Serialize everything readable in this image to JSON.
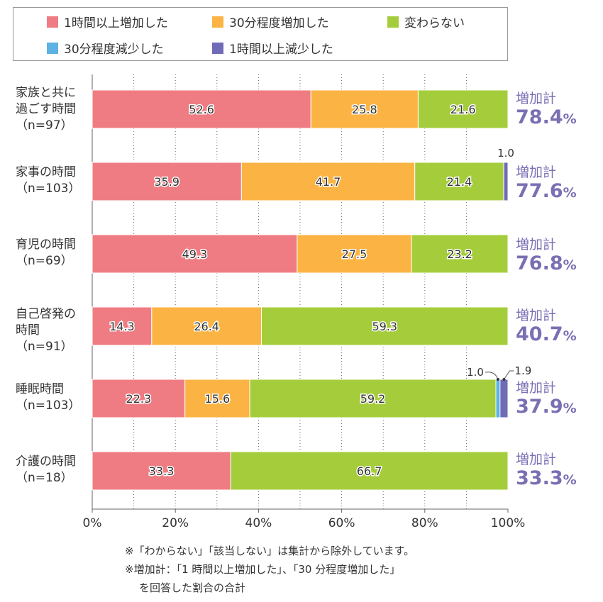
{
  "legend": [
    {
      "label": "1時間以上増加した",
      "color": "#f07c83"
    },
    {
      "label": "30分程度増加した",
      "color": "#fbb443"
    },
    {
      "label": "変わらない",
      "color": "#a5cd3b"
    },
    {
      "label": "30分程度減少した",
      "color": "#5cb2e2"
    },
    {
      "label": "1時間以上減少した",
      "color": "#6f6bb6"
    }
  ],
  "chart_data": {
    "type": "bar",
    "orientation": "horizontal",
    "stacked": true,
    "categories": [
      "家族と共に\n過ごす時間\n（n=97）",
      "家事の時間\n（n=103）",
      "育児の時間\n（n=69）",
      "自己啓発の\n時間\n（n=91）",
      "睡眠時間\n（n=103）",
      "介護の時間\n（n=18）"
    ],
    "series": [
      {
        "name": "1時間以上増加した",
        "color": "#f07c83",
        "values": [
          52.6,
          35.9,
          49.3,
          14.3,
          22.3,
          33.3
        ]
      },
      {
        "name": "30分程度増加した",
        "color": "#fbb443",
        "values": [
          25.8,
          41.7,
          27.5,
          26.4,
          15.6,
          0
        ]
      },
      {
        "name": "変わらない",
        "color": "#a5cd3b",
        "values": [
          21.6,
          21.4,
          23.2,
          59.3,
          59.2,
          66.7
        ]
      },
      {
        "name": "30分程度減少した",
        "color": "#5cb2e2",
        "values": [
          0,
          0,
          0,
          0,
          1.0,
          0
        ]
      },
      {
        "name": "1時間以上減少した",
        "color": "#6f6bb6",
        "values": [
          0,
          1.0,
          0,
          0,
          1.9,
          0
        ]
      }
    ],
    "inside_labels": [
      [
        "52.6",
        "25.8",
        "21.6",
        null,
        null
      ],
      [
        "35.9",
        "41.7",
        "21.4",
        null,
        null
      ],
      [
        "49.3",
        "27.5",
        "23.2",
        null,
        null
      ],
      [
        "14.3",
        "26.4",
        "59.3",
        null,
        null
      ],
      [
        "22.3",
        "15.6",
        "59.2",
        null,
        null
      ],
      [
        "33.3",
        null,
        "66.7",
        null,
        null
      ]
    ],
    "outside_labels": [
      {
        "row": 1,
        "series": 4,
        "text": "1.0",
        "style": "above"
      },
      {
        "row": 4,
        "series": 3,
        "text": "1.0",
        "style": "callout-left"
      },
      {
        "row": 4,
        "series": 4,
        "text": "1.9",
        "style": "callout-right"
      }
    ],
    "x_ticks": [
      "0%",
      "20%",
      "40%",
      "60%",
      "80%",
      "100%"
    ],
    "xlim": [
      0,
      100
    ],
    "grid": "vertical-dotted",
    "legend_position": "top",
    "totals": {
      "caption": "増加計",
      "unit": "%",
      "values": [
        "78.4",
        "77.6",
        "76.8",
        "40.7",
        "37.9",
        "33.3"
      ]
    }
  },
  "notes": [
    "※「わからない」「該当しない」は集計から除外しています。",
    "※増加計：「1 時間以上増加した」、「30 分程度増加した」",
    "を回答した割合の合計"
  ]
}
